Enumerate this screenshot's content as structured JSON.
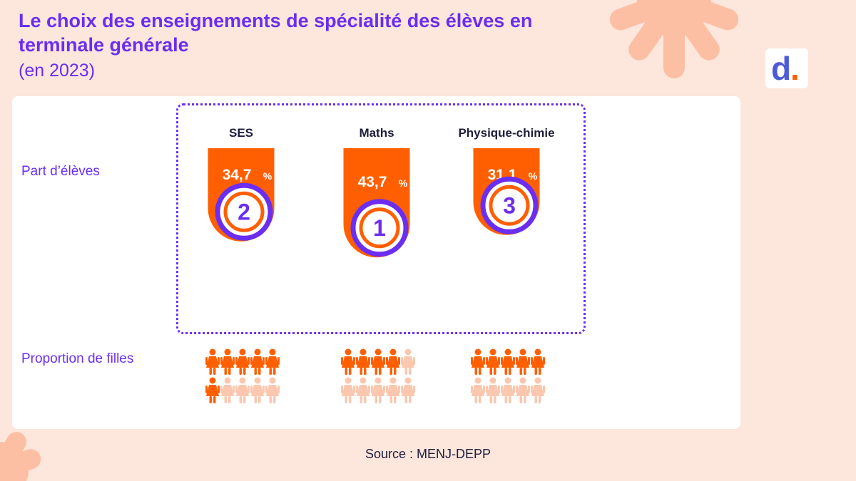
{
  "title": "Le choix des enseignements de spécialité des élèves en terminale générale",
  "subtitle": "(en 2023)",
  "source": "Source : MENJ-DEPP",
  "logo": {
    "letter": "d",
    "dot": "."
  },
  "row_labels": {
    "share": "Part d’élèves",
    "girls": "Proportion de filles"
  },
  "colors": {
    "accent": "#6b2ef0",
    "bar": "#ff5f00",
    "figure_light": "#fbc7ae",
    "background": "#fde6dc"
  },
  "chart_data": {
    "type": "bar",
    "categories": [
      "SES",
      "Maths",
      "Physique-chimie"
    ],
    "values": [
      34.7,
      43.7,
      31.1
    ],
    "value_labels": [
      "34,7",
      "43,7",
      "31,1"
    ],
    "unit": "%",
    "ranks": [
      "2",
      "1",
      "3"
    ],
    "girls_share": [
      0.6,
      0.4,
      0.5
    ],
    "ylim": [
      0,
      45
    ]
  }
}
